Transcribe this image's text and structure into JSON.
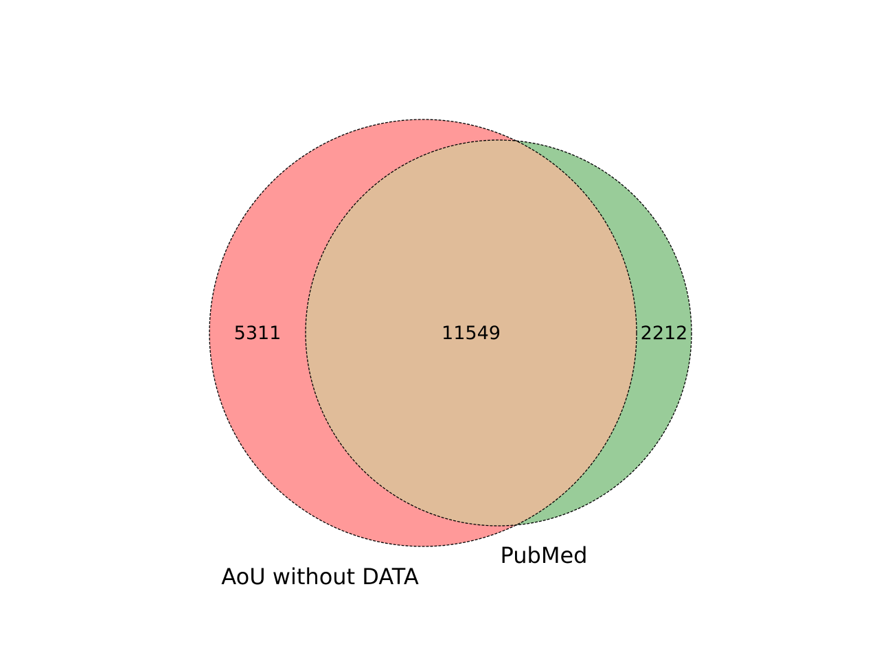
{
  "venn": {
    "sets": [
      {
        "label": "AoU without DATA",
        "color": "#ff9999",
        "only_count": "5311"
      },
      {
        "label": "PubMed",
        "color": "#99cc99",
        "only_count": "2212"
      }
    ],
    "intersection": {
      "count": "11549",
      "color": "#e0bc99"
    },
    "outline": {
      "color": "#000000",
      "style": "dashed"
    }
  }
}
